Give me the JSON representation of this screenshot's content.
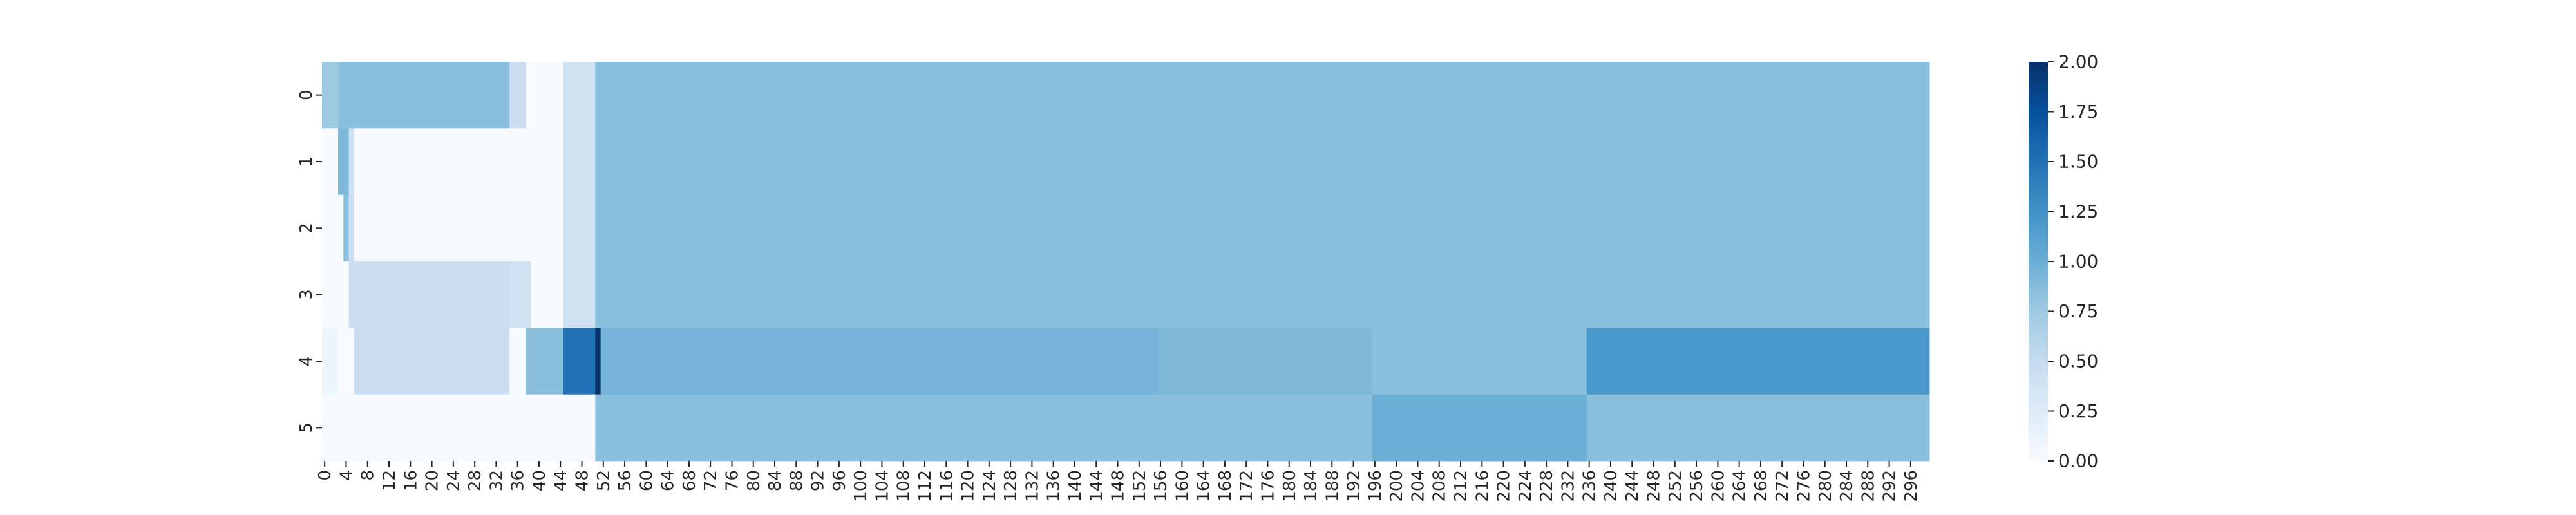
{
  "chart_data": {
    "type": "heatmap",
    "title": "",
    "xlabel": "",
    "ylabel": "",
    "x_count": 300,
    "x_tick_step": 4,
    "y_labels": [
      "0",
      "1",
      "2",
      "3",
      "4",
      "5"
    ],
    "color_range": [
      0,
      2
    ],
    "colormap": "Blues",
    "colorbar_ticks": [
      "0.00",
      "0.25",
      "0.50",
      "0.75",
      "1.00",
      "1.25",
      "1.50",
      "1.75",
      "2.00"
    ],
    "rows": [
      {
        "label": "0",
        "segments": [
          [
            0,
            3,
            0.75
          ],
          [
            3,
            35,
            0.85
          ],
          [
            35,
            38,
            0.45
          ],
          [
            38,
            45,
            0
          ],
          [
            45,
            51,
            0.4
          ],
          [
            51,
            300,
            0.85
          ]
        ]
      },
      {
        "label": "1",
        "segments": [
          [
            0,
            3,
            0
          ],
          [
            3,
            5,
            0.9
          ],
          [
            5,
            6,
            0.4
          ],
          [
            6,
            45,
            0
          ],
          [
            45,
            51,
            0.4
          ],
          [
            51,
            300,
            0.85
          ]
        ]
      },
      {
        "label": "2",
        "segments": [
          [
            0,
            4,
            0
          ],
          [
            4,
            5,
            0.85
          ],
          [
            5,
            6,
            0.45
          ],
          [
            6,
            45,
            0
          ],
          [
            45,
            51,
            0.4
          ],
          [
            51,
            300,
            0.85
          ]
        ]
      },
      {
        "label": "3",
        "segments": [
          [
            0,
            5,
            0
          ],
          [
            5,
            35,
            0.45
          ],
          [
            35,
            39,
            0.4
          ],
          [
            39,
            45,
            0
          ],
          [
            45,
            51,
            0.4
          ],
          [
            51,
            300,
            0.85
          ]
        ]
      },
      {
        "label": "4",
        "segments": [
          [
            0,
            3,
            0.1
          ],
          [
            3,
            6,
            0
          ],
          [
            6,
            35,
            0.45
          ],
          [
            35,
            38,
            0
          ],
          [
            38,
            45,
            0.85
          ],
          [
            45,
            51,
            1.5
          ],
          [
            51,
            52,
            2.0
          ],
          [
            52,
            156,
            0.95
          ],
          [
            156,
            196,
            0.9
          ],
          [
            196,
            236,
            0.85
          ],
          [
            236,
            300,
            1.2
          ]
        ]
      },
      {
        "label": "5",
        "segments": [
          [
            0,
            51,
            0
          ],
          [
            51,
            196,
            0.85
          ],
          [
            196,
            236,
            1.0
          ],
          [
            236,
            300,
            0.85
          ]
        ]
      }
    ]
  }
}
